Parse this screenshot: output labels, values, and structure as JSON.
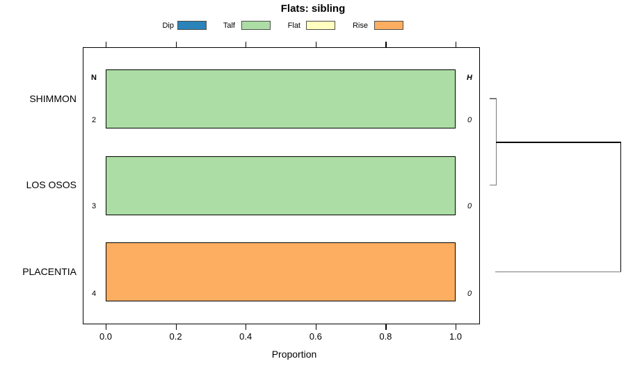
{
  "title": "Flats: sibling",
  "legend": {
    "items": [
      {
        "label": "Dip",
        "color": "#2B83BA"
      },
      {
        "label": "Talf",
        "color": "#ABDDA4"
      },
      {
        "label": "Flat",
        "color": "#FFFFBF"
      },
      {
        "label": "Rise",
        "color": "#FDAE61"
      }
    ]
  },
  "columns": {
    "n_header": "N",
    "h_header": "H"
  },
  "rows": [
    {
      "label": "SHIMMON",
      "n": "2",
      "h": "0"
    },
    {
      "label": "LOS OSOS",
      "n": "3",
      "h": "0"
    },
    {
      "label": "PLACENTIA",
      "n": "4",
      "h": "0"
    }
  ],
  "axis": {
    "label": "Proportion",
    "ticks": [
      "0.0",
      "0.2",
      "0.4",
      "0.6",
      "0.8",
      "1.0"
    ]
  },
  "chart_data": {
    "type": "bar",
    "orientation": "horizontal",
    "title": "Flats: sibling",
    "xlabel": "Proportion",
    "xlim": [
      0,
      1
    ],
    "x_ticks": [
      0.0,
      0.2,
      0.4,
      0.6,
      0.8,
      1.0
    ],
    "categories": [
      "SHIMMON",
      "LOS OSOS",
      "PLACENTIA"
    ],
    "series": [
      {
        "name": "Dip",
        "color": "#2B83BA",
        "values": [
          0,
          0,
          0
        ]
      },
      {
        "name": "Talf",
        "color": "#ABDDA4",
        "values": [
          1,
          1,
          0
        ]
      },
      {
        "name": "Flat",
        "color": "#FFFFBF",
        "values": [
          0,
          0,
          0
        ]
      },
      {
        "name": "Rise",
        "color": "#FDAE61",
        "values": [
          0,
          0,
          1
        ]
      }
    ],
    "annotations": {
      "N": [
        2,
        3,
        4
      ],
      "H": [
        0,
        0,
        0
      ]
    },
    "legend_position": "top",
    "grid": false,
    "dendrogram": {
      "description": "cluster tree at right of panel",
      "merges": [
        {
          "members": [
            "SHIMMON",
            "LOS OSOS"
          ],
          "height": "small"
        },
        {
          "members": [
            "SHIMMON+LOS OSOS",
            "PLACENTIA"
          ],
          "height": "large"
        }
      ]
    }
  }
}
